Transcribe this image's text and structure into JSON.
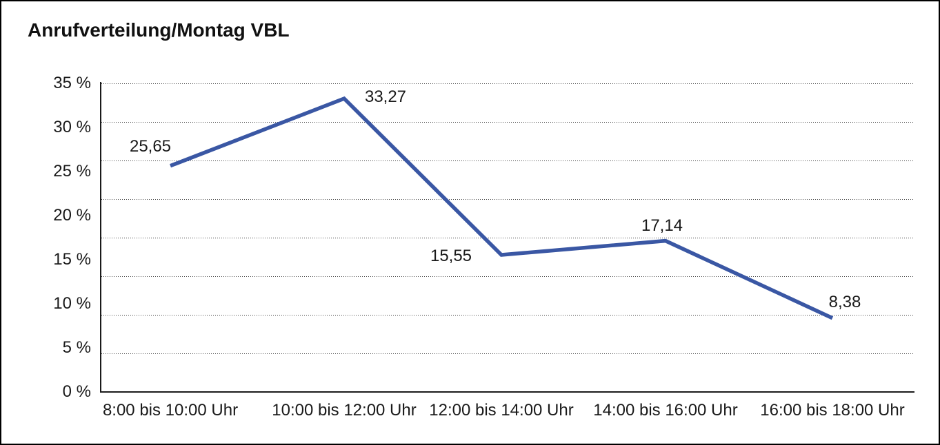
{
  "chart_data": {
    "type": "line",
    "title": "Anrufverteilung/Montag VBL",
    "categories": [
      "8:00 bis 10:00 Uhr",
      "10:00 bis 12:00 Uhr",
      "12:00 bis 14:00 Uhr",
      "14:00 bis 16:00 Uhr",
      "16:00 bis 18:00 Uhr"
    ],
    "series": [
      {
        "name": "Anrufverteilung Montag VBL",
        "values": [
          25.65,
          33.27,
          15.55,
          17.14,
          8.38
        ],
        "value_labels": [
          "25,65",
          "33,27",
          "15,55",
          "17,14",
          "8,38"
        ]
      }
    ],
    "xlabel": "",
    "ylabel": "",
    "ylim": [
      0,
      35
    ],
    "ytick_step": 5,
    "ytick_labels": [
      "0 %",
      "5 %",
      "10 %",
      "15 %",
      "20 %",
      "25 %",
      "30 %",
      "35 %"
    ],
    "grid": "horizontal-dotted",
    "grid_intervals": 8,
    "legend_position": "none",
    "line_color": "#3A57A4",
    "axis_color": "#1a1a1a",
    "text_color": "#1a1a1a",
    "background_color": "#ffffff"
  }
}
